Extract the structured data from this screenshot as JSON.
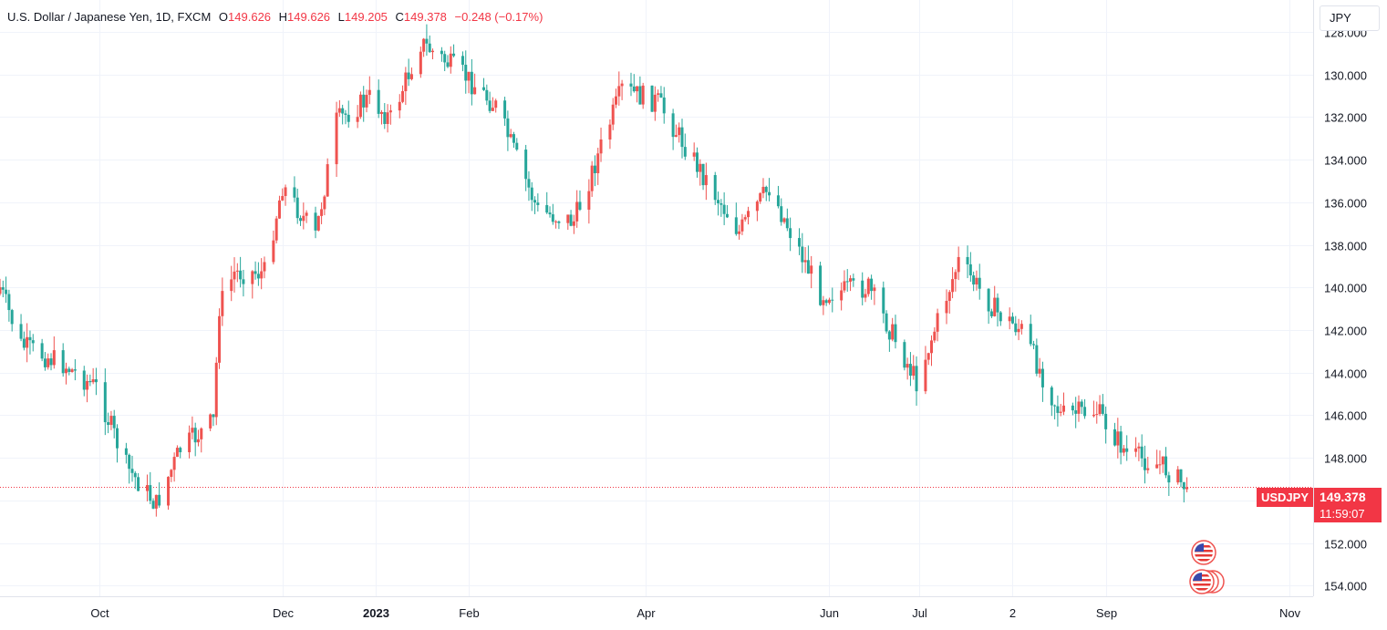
{
  "legend": {
    "symbol_name": "U.S. Dollar / Japanese Yen, 1D, FXCM",
    "open_label": "O",
    "open": "149.626",
    "high_label": "H",
    "high": "149.626",
    "low_label": "L",
    "low": "149.205",
    "close_label": "C",
    "close": "149.378",
    "change": "−0.248 (−0.17%)"
  },
  "currency_button": "JPY",
  "price_badge": {
    "price": "149.378",
    "countdown": "11:59:07",
    "symbol": "USDJPY"
  },
  "colors": {
    "up": "#26a69a",
    "down": "#ef5350",
    "last_price": "#f23645",
    "grid": "#f0f3fa"
  },
  "icons": [
    "us-flag-event-icon",
    "us-flag-events-group-icon"
  ],
  "chart_data": {
    "type": "candlestick",
    "title": "",
    "y_axis": {
      "inverted": true,
      "range": [
        126.5,
        154.5
      ],
      "ticks": [
        "128.000",
        "130.000",
        "132.000",
        "134.000",
        "136.000",
        "138.000",
        "140.000",
        "142.000",
        "144.000",
        "146.000",
        "148.000",
        "150.000",
        "152.000",
        "154.000"
      ],
      "tick_values": [
        128,
        130,
        132,
        134,
        136,
        138,
        140,
        142,
        144,
        146,
        148,
        150,
        152,
        154
      ]
    },
    "x_axis": {
      "range": [
        "2022-08-29",
        "2023-11-09"
      ],
      "ticks": [
        {
          "label": "Oct",
          "date": "2022-10-01",
          "bold": false
        },
        {
          "label": "Dec",
          "date": "2022-12-01",
          "bold": false
        },
        {
          "label": "2023",
          "date": "2023-01-01",
          "bold": true
        },
        {
          "label": "Feb",
          "date": "2023-02-01",
          "bold": false
        },
        {
          "label": "Apr",
          "date": "2023-04-01",
          "bold": false
        },
        {
          "label": "Jun",
          "date": "2023-06-01",
          "bold": false
        },
        {
          "label": "Jul",
          "date": "2023-07-01",
          "bold": false
        },
        {
          "label": "2",
          "date": "2023-08-01",
          "bold": false
        },
        {
          "label": "Sep",
          "date": "2023-09-01",
          "bold": false
        },
        {
          "label": "Nov",
          "date": "2023-11-01",
          "bold": false
        }
      ]
    },
    "last_price": 149.378,
    "grid": true,
    "anchors": [
      {
        "date": "2022-08-29",
        "close": 140.0
      },
      {
        "date": "2022-09-05",
        "close": 142.7
      },
      {
        "date": "2022-09-19",
        "close": 143.6
      },
      {
        "date": "2022-09-30",
        "close": 144.7
      },
      {
        "date": "2022-10-10",
        "close": 148.4
      },
      {
        "date": "2022-10-20",
        "close": 150.2
      },
      {
        "date": "2022-10-28",
        "close": 147.6
      },
      {
        "date": "2022-11-08",
        "close": 146.3
      },
      {
        "date": "2022-11-10",
        "close": 140.9
      },
      {
        "date": "2022-11-15",
        "close": 139.3
      },
      {
        "date": "2022-11-25",
        "close": 139.3
      },
      {
        "date": "2022-12-01",
        "close": 135.2
      },
      {
        "date": "2022-12-12",
        "close": 137.6
      },
      {
        "date": "2022-12-19",
        "close": 132.2
      },
      {
        "date": "2022-12-30",
        "close": 131.1
      },
      {
        "date": "2023-01-06",
        "close": 132.1
      },
      {
        "date": "2023-01-16",
        "close": 128.5
      },
      {
        "date": "2023-01-31",
        "close": 130.1
      },
      {
        "date": "2023-02-10",
        "close": 131.5
      },
      {
        "date": "2023-02-24",
        "close": 136.4
      },
      {
        "date": "2023-03-08",
        "close": 136.9
      },
      {
        "date": "2023-03-24",
        "close": 130.7
      },
      {
        "date": "2023-04-05",
        "close": 131.3
      },
      {
        "date": "2023-04-20",
        "close": 134.7
      },
      {
        "date": "2023-05-02",
        "close": 137.4
      },
      {
        "date": "2023-05-12",
        "close": 135.3
      },
      {
        "date": "2023-05-29",
        "close": 140.3
      },
      {
        "date": "2023-06-14",
        "close": 140.0
      },
      {
        "date": "2023-06-30",
        "close": 144.4
      },
      {
        "date": "2023-07-14",
        "close": 138.8
      },
      {
        "date": "2023-07-27",
        "close": 141.2
      },
      {
        "date": "2023-08-04",
        "close": 142.0
      },
      {
        "date": "2023-08-17",
        "close": 146.0
      },
      {
        "date": "2023-08-29",
        "close": 145.8
      },
      {
        "date": "2023-09-08",
        "close": 147.8
      },
      {
        "date": "2023-09-20",
        "close": 148.4
      },
      {
        "date": "2023-09-28",
        "close": 149.378
      }
    ]
  }
}
